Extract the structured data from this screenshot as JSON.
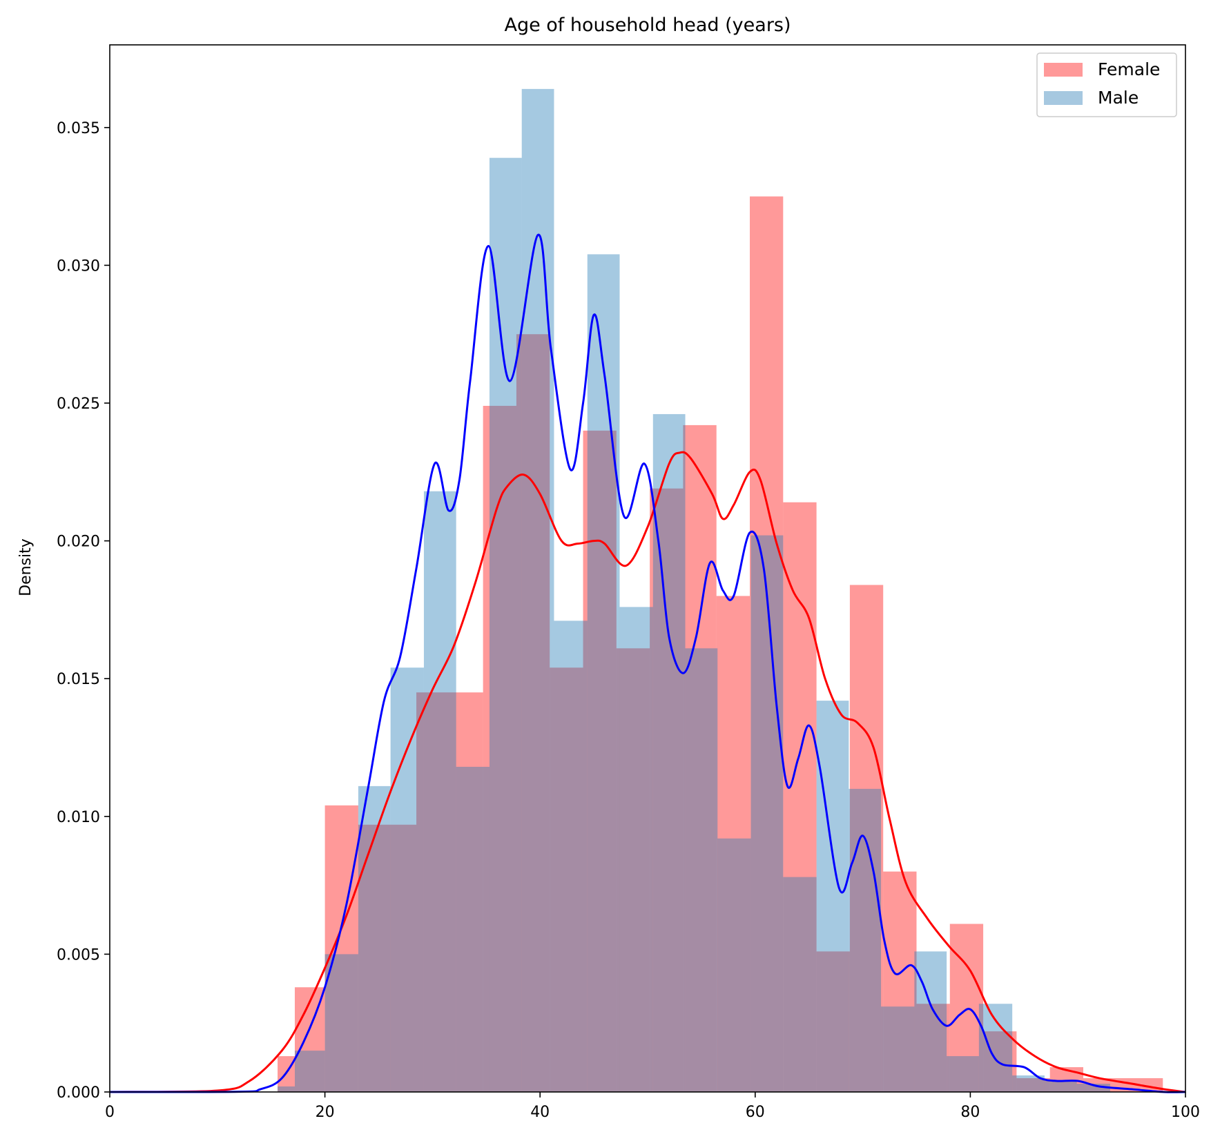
{
  "chart_data": {
    "type": "bar",
    "title": "Age of household head (years)",
    "xlabel": "",
    "ylabel": "Density",
    "xlim": [
      0,
      100
    ],
    "ylim": [
      0,
      0.038
    ],
    "xticks": [
      0,
      20,
      40,
      60,
      80,
      100
    ],
    "yticks": [
      0.0,
      0.005,
      0.01,
      0.015,
      0.02,
      0.025,
      0.03,
      0.035
    ],
    "ytick_labels": [
      "0.000",
      "0.005",
      "0.010",
      "0.015",
      "0.020",
      "0.025",
      "0.030",
      "0.035"
    ],
    "grid": false,
    "legend_position": "top-right",
    "colors": {
      "female_bar": "#ff9999",
      "male_bar": "#a6c8e0",
      "overlap": "#a48ca3",
      "female_line": "#ff0000",
      "male_line": "#0000ff"
    },
    "series": [
      {
        "name": "Female",
        "kind": "histogram",
        "color": "#ff9999",
        "bins": [
          [
            15.6,
            17.2,
            0.0013
          ],
          [
            17.2,
            20.0,
            0.0038
          ],
          [
            20.0,
            23.1,
            0.0104
          ],
          [
            23.1,
            28.5,
            0.0097
          ],
          [
            28.5,
            34.7,
            0.0145
          ],
          [
            34.7,
            37.8,
            0.0249
          ],
          [
            37.8,
            40.9,
            0.0275
          ],
          [
            40.9,
            44.0,
            0.0154
          ],
          [
            44.0,
            47.1,
            0.024
          ],
          [
            47.1,
            50.2,
            0.0161
          ],
          [
            50.2,
            53.3,
            0.0219
          ],
          [
            53.3,
            56.4,
            0.0242
          ],
          [
            56.4,
            59.5,
            0.018
          ],
          [
            59.5,
            62.6,
            0.0325
          ],
          [
            62.6,
            65.7,
            0.0214
          ],
          [
            65.7,
            68.8,
            0.0051
          ],
          [
            68.8,
            71.9,
            0.0184
          ],
          [
            71.9,
            75.0,
            0.008
          ],
          [
            75.0,
            78.1,
            0.0032
          ],
          [
            78.1,
            81.2,
            0.0061
          ],
          [
            81.2,
            84.3,
            0.0022
          ],
          [
            84.3,
            87.4,
            0.0005
          ],
          [
            87.4,
            90.5,
            0.0009
          ],
          [
            90.5,
            97.9,
            0.0005
          ]
        ]
      },
      {
        "name": "Male",
        "kind": "histogram",
        "color": "#a6c8e0",
        "bins": [
          [
            15.6,
            17.2,
            0.0002
          ],
          [
            17.2,
            20.0,
            0.0015
          ],
          [
            20.0,
            23.1,
            0.005
          ],
          [
            23.1,
            26.1,
            0.0111
          ],
          [
            26.1,
            29.2,
            0.0154
          ],
          [
            29.2,
            32.2,
            0.0218
          ],
          [
            32.2,
            35.3,
            0.0118
          ],
          [
            35.3,
            38.3,
            0.0339
          ],
          [
            38.3,
            41.3,
            0.0364
          ],
          [
            41.3,
            44.4,
            0.0171
          ],
          [
            44.4,
            47.4,
            0.0304
          ],
          [
            47.4,
            50.5,
            0.0176
          ],
          [
            50.5,
            53.5,
            0.0246
          ],
          [
            53.5,
            56.5,
            0.0161
          ],
          [
            56.5,
            59.6,
            0.0092
          ],
          [
            59.6,
            62.6,
            0.0202
          ],
          [
            62.6,
            65.7,
            0.0078
          ],
          [
            65.7,
            68.7,
            0.0142
          ],
          [
            68.7,
            71.7,
            0.011
          ],
          [
            71.7,
            74.8,
            0.0031
          ],
          [
            74.8,
            77.8,
            0.0051
          ],
          [
            77.8,
            80.8,
            0.0013
          ],
          [
            80.8,
            83.9,
            0.0032
          ],
          [
            83.9,
            86.9,
            0.0006
          ],
          [
            86.9,
            89.9,
            0.0004
          ],
          [
            89.9,
            93.0,
            0.0003
          ]
        ]
      },
      {
        "name": "Female",
        "kind": "kde",
        "color": "#ff0000",
        "x": [
          0,
          10,
          13,
          16,
          18,
          20,
          22,
          24,
          26,
          28,
          30,
          32,
          34,
          36,
          37,
          38.5,
          40,
          42,
          43.5,
          45,
          46,
          48,
          50,
          52,
          53,
          54,
          56,
          57,
          58,
          59.5,
          60.5,
          62,
          63.5,
          65,
          66.5,
          68,
          69.5,
          71,
          72.5,
          74,
          76,
          78,
          80,
          82,
          84,
          86,
          88,
          90,
          92,
          95,
          98,
          100
        ],
        "y": [
          0,
          5e-05,
          0.0004,
          0.0015,
          0.0028,
          0.0045,
          0.0064,
          0.0086,
          0.0108,
          0.0128,
          0.0146,
          0.0162,
          0.0185,
          0.0212,
          0.022,
          0.0224,
          0.0217,
          0.02,
          0.0199,
          0.02,
          0.0199,
          0.0191,
          0.0205,
          0.0228,
          0.0232,
          0.023,
          0.0217,
          0.0208,
          0.0213,
          0.0225,
          0.0222,
          0.0199,
          0.0182,
          0.0172,
          0.015,
          0.0137,
          0.0134,
          0.0125,
          0.0099,
          0.0076,
          0.0063,
          0.0053,
          0.0044,
          0.0028,
          0.0019,
          0.0013,
          0.0009,
          0.0007,
          0.0005,
          0.0003,
          0.0001,
          0.0
        ]
      },
      {
        "name": "Male",
        "kind": "kde",
        "color": "#0000ff",
        "x": [
          0,
          12,
          14,
          16,
          18,
          20,
          22,
          24,
          25.5,
          27,
          28.5,
          30.2,
          31.5,
          32.5,
          33.5,
          35.2,
          37.2,
          39.8,
          41,
          42.8,
          44,
          45,
          46,
          47.8,
          49.7,
          51,
          52,
          53.3,
          54.5,
          55.8,
          57,
          58,
          59.5,
          60.8,
          62,
          63,
          64,
          65,
          66,
          67.8,
          69,
          70,
          71,
          72,
          73,
          74.5,
          75.5,
          76.5,
          77.8,
          79,
          80,
          81,
          82,
          83,
          85,
          86.5,
          88,
          90,
          92,
          95,
          98,
          100
        ],
        "y": [
          0,
          1e-05,
          0.0001,
          0.0005,
          0.0018,
          0.0038,
          0.0068,
          0.011,
          0.0142,
          0.0158,
          0.019,
          0.0228,
          0.0211,
          0.0222,
          0.0258,
          0.0307,
          0.0258,
          0.0311,
          0.027,
          0.0226,
          0.025,
          0.0282,
          0.026,
          0.0209,
          0.0228,
          0.02,
          0.0165,
          0.0152,
          0.0165,
          0.0192,
          0.0182,
          0.018,
          0.0203,
          0.019,
          0.014,
          0.0111,
          0.0121,
          0.0133,
          0.0118,
          0.0074,
          0.0083,
          0.0093,
          0.008,
          0.0055,
          0.0043,
          0.0046,
          0.004,
          0.003,
          0.0024,
          0.0028,
          0.003,
          0.0024,
          0.0014,
          0.001,
          0.0009,
          0.0005,
          0.0004,
          0.0004,
          0.0002,
          0.0001,
          0.0,
          0.0
        ]
      }
    ]
  }
}
